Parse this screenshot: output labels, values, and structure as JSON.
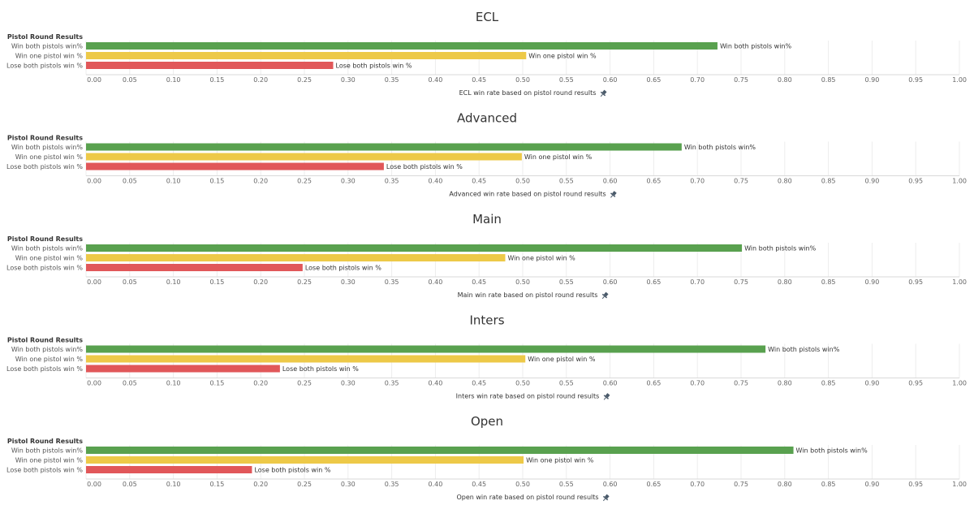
{
  "chart_data": [
    {
      "type": "bar",
      "title": "ECL",
      "row_header": "Pistol Round Results",
      "categories": [
        "Win both pistols win%",
        "Win one pistol win %",
        "Lose both pistols win %"
      ],
      "values": [
        0.723,
        0.504,
        0.283
      ],
      "xlabel": "ECL win rate based on pistol round results",
      "xlim": [
        0,
        1
      ],
      "xticks": [
        "0.00",
        "0.05",
        "0.10",
        "0.15",
        "0.20",
        "0.25",
        "0.30",
        "0.35",
        "0.40",
        "0.45",
        "0.50",
        "0.55",
        "0.60",
        "0.65",
        "0.70",
        "0.75",
        "0.80",
        "0.85",
        "0.90",
        "0.95",
        "1.00"
      ],
      "grid": true
    },
    {
      "type": "bar",
      "title": "Advanced",
      "row_header": "Pistol Round Results",
      "categories": [
        "Win both pistols win%",
        "Win one pistol win %",
        "Lose both pistols win %"
      ],
      "values": [
        0.682,
        0.499,
        0.341
      ],
      "xlabel": "Advanced win rate based on pistol round results",
      "xlim": [
        0,
        1
      ],
      "xticks": [
        "0.00",
        "0.05",
        "0.10",
        "0.15",
        "0.20",
        "0.25",
        "0.30",
        "0.35",
        "0.40",
        "0.45",
        "0.50",
        "0.55",
        "0.60",
        "0.65",
        "0.70",
        "0.75",
        "0.80",
        "0.85",
        "0.90",
        "0.95",
        "1.00"
      ],
      "grid": true
    },
    {
      "type": "bar",
      "title": "Main",
      "row_header": "Pistol Round Results",
      "categories": [
        "Win both pistols win%",
        "Win one pistol win %",
        "Lose both pistols win %"
      ],
      "values": [
        0.751,
        0.48,
        0.248
      ],
      "xlabel": "Main win rate based on pistol round results",
      "xlim": [
        0,
        1
      ],
      "xticks": [
        "0.00",
        "0.05",
        "0.10",
        "0.15",
        "0.20",
        "0.25",
        "0.30",
        "0.35",
        "0.40",
        "0.45",
        "0.50",
        "0.55",
        "0.60",
        "0.65",
        "0.70",
        "0.75",
        "0.80",
        "0.85",
        "0.90",
        "0.95",
        "1.00"
      ],
      "grid": true
    },
    {
      "type": "bar",
      "title": "Inters",
      "row_header": "Pistol Round Results",
      "categories": [
        "Win both pistols win%",
        "Win one pistol win %",
        "Lose both pistols win %"
      ],
      "values": [
        0.778,
        0.503,
        0.222
      ],
      "xlabel": "Inters win rate based on pistol round results",
      "xlim": [
        0,
        1
      ],
      "xticks": [
        "0.00",
        "0.05",
        "0.10",
        "0.15",
        "0.20",
        "0.25",
        "0.30",
        "0.35",
        "0.40",
        "0.45",
        "0.50",
        "0.55",
        "0.60",
        "0.65",
        "0.70",
        "0.75",
        "0.80",
        "0.85",
        "0.90",
        "0.95",
        "1.00"
      ],
      "grid": true
    },
    {
      "type": "bar",
      "title": "Open",
      "row_header": "Pistol Round Results",
      "categories": [
        "Win both pistols win%",
        "Win one pistol win %",
        "Lose both pistols win %"
      ],
      "values": [
        0.81,
        0.501,
        0.19
      ],
      "xlabel": "Open win rate based on pistol round results",
      "xlim": [
        0,
        1
      ],
      "xticks": [
        "0.00",
        "0.05",
        "0.10",
        "0.15",
        "0.20",
        "0.25",
        "0.30",
        "0.35",
        "0.40",
        "0.45",
        "0.50",
        "0.55",
        "0.60",
        "0.65",
        "0.70",
        "0.75",
        "0.80",
        "0.85",
        "0.90",
        "0.95",
        "1.00"
      ],
      "grid": true
    }
  ],
  "colors": {
    "win_both": "#59a14f",
    "win_one": "#edc948",
    "lose_both": "#e15759",
    "grid": "#ececec",
    "tick_text": "#666666",
    "title_text": "#333333"
  },
  "icons": {
    "pin": "pin-icon"
  }
}
